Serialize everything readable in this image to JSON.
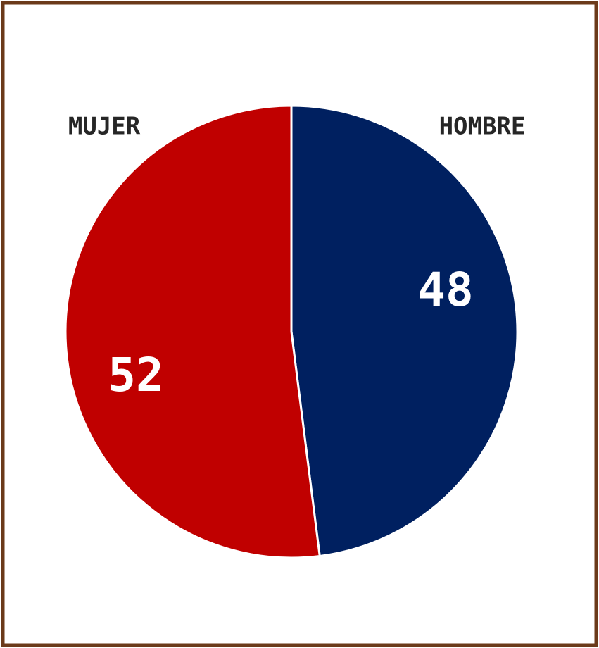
{
  "chart_data": {
    "type": "pie",
    "categories": [
      "HOMBRE",
      "MUJER"
    ],
    "values": [
      48,
      52
    ],
    "colors": [
      "#002060",
      "#c00000"
    ]
  }
}
